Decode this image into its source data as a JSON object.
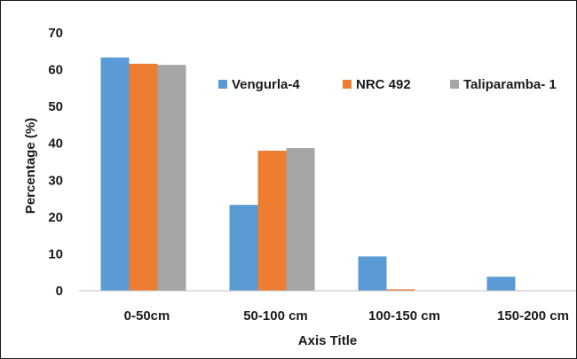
{
  "chart_data": {
    "type": "bar",
    "title": "",
    "xlabel": "Axis Title",
    "ylabel": "Percentage (%)",
    "categories": [
      "0-50cm",
      "50-100 cm",
      "100-150 cm",
      "150-200 cm"
    ],
    "series": [
      {
        "name": "Vengurla-4",
        "color": "#5b9bd5",
        "values": [
          63.3,
          23.3,
          9.3,
          3.8
        ]
      },
      {
        "name": "NRC 492",
        "color": "#ed7d31",
        "values": [
          61.6,
          38.0,
          0.4,
          0
        ]
      },
      {
        "name": "Taliparamba- 1",
        "color": "#a5a5a5",
        "values": [
          61.3,
          38.7,
          0,
          0
        ]
      }
    ],
    "ylim": [
      0,
      70
    ],
    "yticks": [
      0,
      10,
      20,
      30,
      40,
      50,
      60,
      70
    ],
    "grid": false,
    "legend_position": "top-right"
  }
}
